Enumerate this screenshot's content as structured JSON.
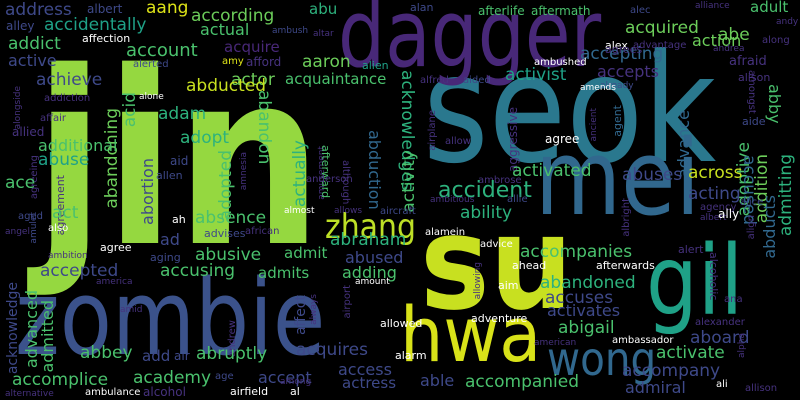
{
  "words": [
    {
      "text": "jin",
      "color": "#95d840"
    },
    {
      "text": "seok",
      "color": "#2a788e"
    },
    {
      "text": "dagger",
      "color": "#482878"
    },
    {
      "text": "zombie",
      "color": "#3b528b"
    },
    {
      "text": "su",
      "color": "#c8e020"
    },
    {
      "text": "mei",
      "color": "#31688e"
    },
    {
      "text": "hwa",
      "color": "#d8e219"
    },
    {
      "text": "gil",
      "color": "#1fa187"
    },
    {
      "text": "wong",
      "color": "#31688e"
    },
    {
      "text": "zhang",
      "color": "#bddf26"
    },
    {
      "text": "address",
      "color": "#3e4989"
    },
    {
      "text": "albert",
      "color": "#3e4989"
    },
    {
      "text": "aang",
      "color": "#dde318"
    },
    {
      "text": "according",
      "color": "#6ccd5a"
    },
    {
      "text": "abu",
      "color": "#2db27d"
    },
    {
      "text": "alan",
      "color": "#3e4989"
    },
    {
      "text": "afterlife",
      "color": "#4ac16d"
    },
    {
      "text": "aftermath",
      "color": "#4ac16d"
    },
    {
      "text": "alec",
      "color": "#3e4989"
    },
    {
      "text": "alliance",
      "color": "#46327e"
    },
    {
      "text": "adult",
      "color": "#4ac16d"
    },
    {
      "text": "alley",
      "color": "#3e4989"
    },
    {
      "text": "accidentally",
      "color": "#1fa187"
    },
    {
      "text": "actual",
      "color": "#4ac16d"
    },
    {
      "text": "acquired",
      "color": "#6ccd5a"
    },
    {
      "text": "alex",
      "color": "#ffffff"
    },
    {
      "text": "advantage",
      "color": "#46327e"
    },
    {
      "text": "abe",
      "color": "#6ccd5a"
    },
    {
      "text": "andy",
      "color": "#46327e"
    },
    {
      "text": "addict",
      "color": "#4ac16d"
    },
    {
      "text": "affection",
      "color": "#ffffff"
    },
    {
      "text": "ambush",
      "color": "#3e4989"
    },
    {
      "text": "altar",
      "color": "#46327e"
    },
    {
      "text": "accepting",
      "color": "#31688e"
    },
    {
      "text": "action",
      "color": "#6ccd5a"
    },
    {
      "text": "along",
      "color": "#46327e"
    },
    {
      "text": "account",
      "color": "#4ac16d"
    },
    {
      "text": "acquire",
      "color": "#482878"
    },
    {
      "text": "agrees",
      "color": "#46327e"
    },
    {
      "text": "andrea",
      "color": "#46327e"
    },
    {
      "text": "active",
      "color": "#3e4989"
    },
    {
      "text": "alerted",
      "color": "#3e4989"
    },
    {
      "text": "amy",
      "color": "#dde318"
    },
    {
      "text": "afford",
      "color": "#46327e"
    },
    {
      "text": "aaron",
      "color": "#6ccd5a"
    },
    {
      "text": "alien",
      "color": "#1fa187"
    },
    {
      "text": "ambushed",
      "color": "#ffffff"
    },
    {
      "text": "afraid",
      "color": "#46327e"
    },
    {
      "text": "alison",
      "color": "#46327e"
    },
    {
      "text": "achieve",
      "color": "#3e4989"
    },
    {
      "text": "actor",
      "color": "#6ccd5a"
    },
    {
      "text": "acquaintance",
      "color": "#4ac16d"
    },
    {
      "text": "activist",
      "color": "#1fa187"
    },
    {
      "text": "accepts",
      "color": "#46327e"
    },
    {
      "text": "alfred",
      "color": "#46327e"
    },
    {
      "text": "aided",
      "color": "#3e4989"
    },
    {
      "text": "already",
      "color": "#3e4989"
    },
    {
      "text": "amongst",
      "color": "#46327e"
    },
    {
      "text": "alongside",
      "color": "#46327e"
    },
    {
      "text": "addiction",
      "color": "#46327e"
    },
    {
      "text": "abducted",
      "color": "#c8e020"
    },
    {
      "text": "amends",
      "color": "#ffffff"
    },
    {
      "text": "alone",
      "color": "#ffffff"
    },
    {
      "text": "acknowledges",
      "color": "#2db27d"
    },
    {
      "text": "abby",
      "color": "#4ac16d"
    },
    {
      "text": "acid",
      "color": "#4ac16d"
    },
    {
      "text": "adam",
      "color": "#2db27d"
    },
    {
      "text": "affair",
      "color": "#46327e"
    },
    {
      "text": "abandoning",
      "color": "#6ccd5a"
    },
    {
      "text": "ancient",
      "color": "#46327e"
    },
    {
      "text": "agent",
      "color": "#31688e"
    },
    {
      "text": "aide",
      "color": "#3e4989"
    },
    {
      "text": "allied",
      "color": "#46327e"
    },
    {
      "text": "adopt",
      "color": "#2db27d"
    },
    {
      "text": "airplane",
      "color": "#46327e"
    },
    {
      "text": "admitting",
      "color": "#2db27d"
    },
    {
      "text": "abandon",
      "color": "#4ac16d"
    },
    {
      "text": "additional",
      "color": "#4ac16d"
    },
    {
      "text": "abuse",
      "color": "#1fa187"
    },
    {
      "text": "aggressive",
      "color": "#46327e"
    },
    {
      "text": "agree",
      "color": "#ffffff"
    },
    {
      "text": "advance",
      "color": "#31688e"
    },
    {
      "text": "allow",
      "color": "#46327e"
    },
    {
      "text": "addition",
      "color": "#6ccd5a"
    },
    {
      "text": "adoptive",
      "color": "#4ac16d"
    },
    {
      "text": "agreeing",
      "color": "#46327e"
    },
    {
      "text": "abortion",
      "color": "#3e4989"
    },
    {
      "text": "adopted",
      "color": "#4ac16d"
    },
    {
      "text": "actually",
      "color": "#2db27d"
    },
    {
      "text": "aid",
      "color": "#3e4989"
    },
    {
      "text": "ace",
      "color": "#4ac16d"
    },
    {
      "text": "amusement",
      "color": "#46327e"
    },
    {
      "text": "abduction",
      "color": "#31688e"
    },
    {
      "text": "afterward",
      "color": "#4ac16d"
    },
    {
      "text": "although",
      "color": "#46327e"
    },
    {
      "text": "activated",
      "color": "#4ac16d"
    },
    {
      "text": "accused",
      "color": "#31688e"
    },
    {
      "text": "agreement",
      "color": "#46327e"
    },
    {
      "text": "activity",
      "color": "#4ac16d"
    },
    {
      "text": "allen",
      "color": "#3e4989"
    },
    {
      "text": "abuses",
      "color": "#3e4989"
    },
    {
      "text": "anderson",
      "color": "#46327e"
    },
    {
      "text": "ambrose",
      "color": "#46327e"
    },
    {
      "text": "amnesia",
      "color": "#46327e"
    },
    {
      "text": "accident",
      "color": "#2db27d"
    },
    {
      "text": "acting",
      "color": "#3e4989"
    },
    {
      "text": "across",
      "color": "#c8e020"
    },
    {
      "text": "ability",
      "color": "#2db27d"
    },
    {
      "text": "amulet",
      "color": "#3e4989"
    },
    {
      "text": "albright",
      "color": "#46327e"
    },
    {
      "text": "alice",
      "color": "#3e4989"
    },
    {
      "text": "abducts",
      "color": "#31688e"
    },
    {
      "text": "ambitious",
      "color": "#46327e"
    },
    {
      "text": "allie",
      "color": "#3e4989"
    },
    {
      "text": "almost",
      "color": "#ffffff"
    },
    {
      "text": "allows",
      "color": "#46327e"
    },
    {
      "text": "aircraft",
      "color": "#3e4989"
    },
    {
      "text": "aged",
      "color": "#3e4989"
    },
    {
      "text": "act",
      "color": "#4ac16d"
    },
    {
      "text": "absence",
      "color": "#4ac16d"
    },
    {
      "text": "ah",
      "color": "#ffffff"
    },
    {
      "text": "agency",
      "color": "#46327e"
    },
    {
      "text": "albert",
      "color": "#46327e"
    },
    {
      "text": "ally",
      "color": "#ffffff"
    },
    {
      "text": "align",
      "color": "#46327e"
    },
    {
      "text": "angel",
      "color": "#46327e"
    },
    {
      "text": "also",
      "color": "#ffffff"
    },
    {
      "text": "ad",
      "color": "#3e4989"
    },
    {
      "text": "advises",
      "color": "#3e4989"
    },
    {
      "text": "african",
      "color": "#46327e"
    },
    {
      "text": "abraham",
      "color": "#2db27d"
    },
    {
      "text": "alamein",
      "color": "#ffffff"
    },
    {
      "text": "abusive",
      "color": "#4ac16d"
    },
    {
      "text": "admit",
      "color": "#4ac16d"
    },
    {
      "text": "agree",
      "color": "#ffffff"
    },
    {
      "text": "aging",
      "color": "#3e4989"
    },
    {
      "text": "advice",
      "color": "#ffffff"
    },
    {
      "text": "accompanies",
      "color": "#4ac16d"
    },
    {
      "text": "alert",
      "color": "#46327e"
    },
    {
      "text": "abused",
      "color": "#3e4989"
    },
    {
      "text": "ambition",
      "color": "#46327e"
    },
    {
      "text": "accepted",
      "color": "#3e4989"
    },
    {
      "text": "accusing",
      "color": "#4ac16d"
    },
    {
      "text": "admits",
      "color": "#4ac16d"
    },
    {
      "text": "adding",
      "color": "#4ac16d"
    },
    {
      "text": "ahead",
      "color": "#ffffff"
    },
    {
      "text": "afterwards",
      "color": "#ffffff"
    },
    {
      "text": "alcoholic",
      "color": "#46327e"
    },
    {
      "text": "america",
      "color": "#46327e"
    },
    {
      "text": "amount",
      "color": "#ffffff"
    },
    {
      "text": "abandoned",
      "color": "#2db27d"
    },
    {
      "text": "accuses",
      "color": "#3e4989"
    },
    {
      "text": "aim",
      "color": "#ffffff"
    },
    {
      "text": "allowing",
      "color": "#46327e"
    },
    {
      "text": "acknowledge",
      "color": "#3e4989"
    },
    {
      "text": "ana",
      "color": "#46327e"
    },
    {
      "text": "airport",
      "color": "#46327e"
    },
    {
      "text": "advanced",
      "color": "#4ac16d"
    },
    {
      "text": "always",
      "color": "#46327e"
    },
    {
      "text": "admitted",
      "color": "#4ac16d"
    },
    {
      "text": "amid",
      "color": "#46327e"
    },
    {
      "text": "affect",
      "color": "#3e4989"
    },
    {
      "text": "activates",
      "color": "#3e4989"
    },
    {
      "text": "abigail",
      "color": "#4ac16d"
    },
    {
      "text": "adventure",
      "color": "#ffffff"
    },
    {
      "text": "alexander",
      "color": "#46327e"
    },
    {
      "text": "allowed",
      "color": "#ffffff"
    },
    {
      "text": "andrew",
      "color": "#46327e"
    },
    {
      "text": "aboard",
      "color": "#3e4989"
    },
    {
      "text": "ambassador",
      "color": "#ffffff"
    },
    {
      "text": "american",
      "color": "#46327e"
    },
    {
      "text": "abbey",
      "color": "#4ac16d"
    },
    {
      "text": "add",
      "color": "#3e4989"
    },
    {
      "text": "air",
      "color": "#3e4989"
    },
    {
      "text": "abruptly",
      "color": "#4ac16d"
    },
    {
      "text": "acquires",
      "color": "#3e4989"
    },
    {
      "text": "activate",
      "color": "#4ac16d"
    },
    {
      "text": "alpha",
      "color": "#46327e"
    },
    {
      "text": "accompany",
      "color": "#3e4989"
    },
    {
      "text": "access",
      "color": "#3e4989"
    },
    {
      "text": "alarm",
      "color": "#ffffff"
    },
    {
      "text": "accomplice",
      "color": "#4ac16d"
    },
    {
      "text": "academy",
      "color": "#4ac16d"
    },
    {
      "text": "accept",
      "color": "#3e4989"
    },
    {
      "text": "actress",
      "color": "#3e4989"
    },
    {
      "text": "able",
      "color": "#3e4989"
    },
    {
      "text": "accompanied",
      "color": "#4ac16d"
    },
    {
      "text": "admiral",
      "color": "#3e4989"
    },
    {
      "text": "among",
      "color": "#46327e"
    },
    {
      "text": "age",
      "color": "#3e4989"
    },
    {
      "text": "ali",
      "color": "#ffffff"
    },
    {
      "text": "allison",
      "color": "#46327e"
    },
    {
      "text": "alternative",
      "color": "#46327e"
    },
    {
      "text": "ambulance",
      "color": "#ffffff"
    },
    {
      "text": "alcohol",
      "color": "#46327e"
    },
    {
      "text": "airfield",
      "color": "#ffffff"
    },
    {
      "text": "al",
      "color": "#ffffff"
    }
  ]
}
